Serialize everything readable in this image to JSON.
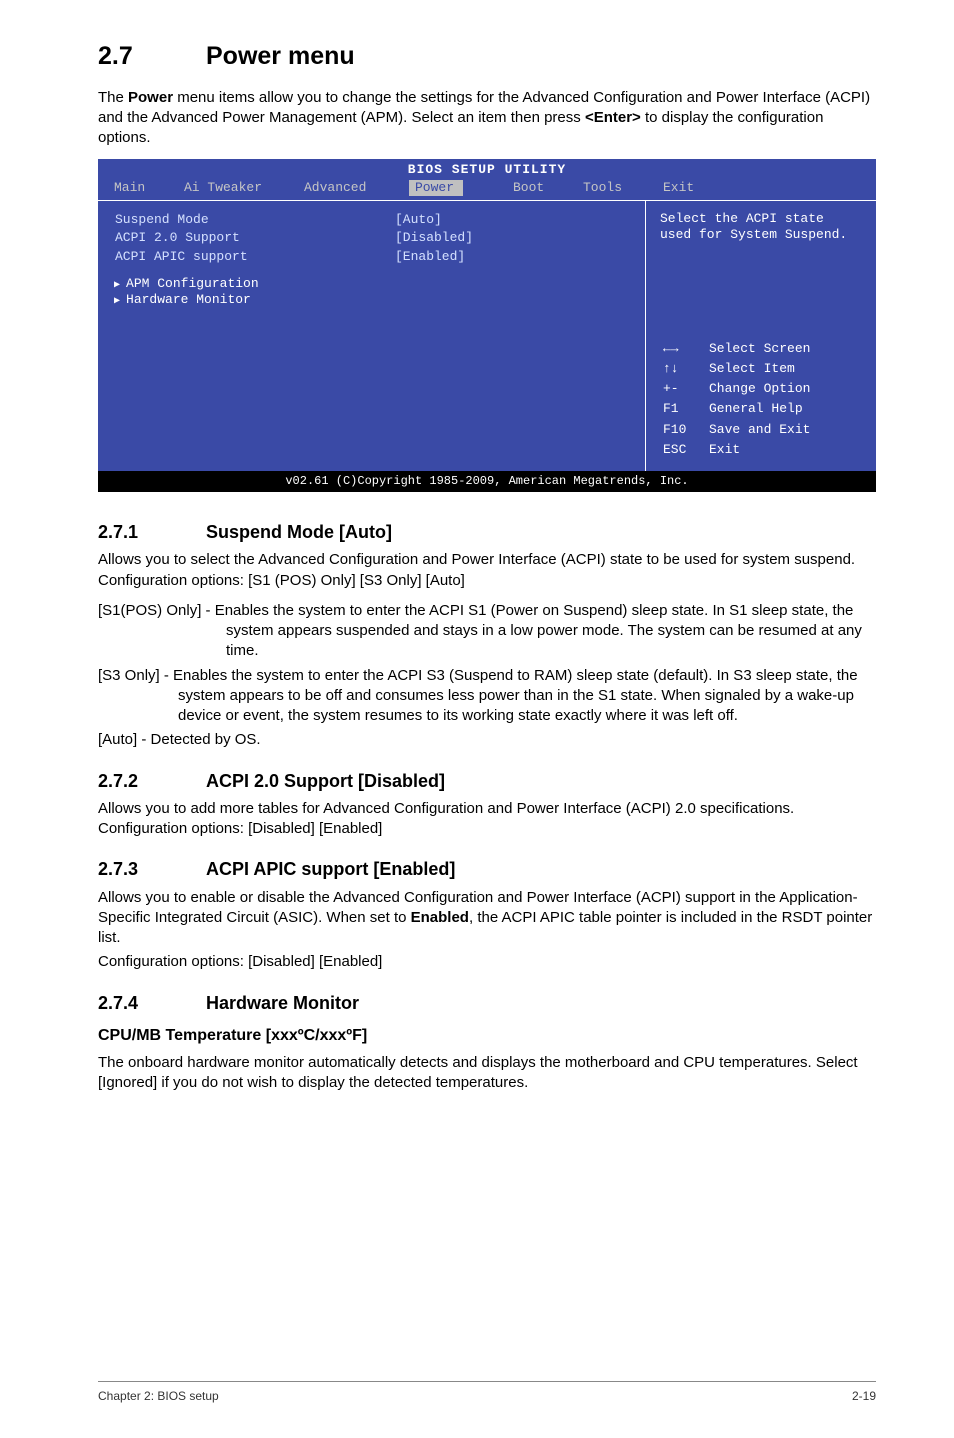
{
  "section": {
    "number": "2.7",
    "title": "Power menu"
  },
  "intro_html": "The <b>Power</b> menu items allow you to change the settings for the Advanced Configuration and Power Interface (ACPI) and the Advanced Power Management (APM). Select an item then press <b>&lt;Enter&gt;</b> to display the configuration options.",
  "bios": {
    "title": "BIOS SETUP UTILITY",
    "tabs": [
      "Main",
      "Ai Tweaker",
      "Advanced",
      "Power",
      "Boot",
      "Tools",
      "Exit"
    ],
    "active_tab": "Power",
    "left_rows": [
      {
        "label": "Suspend Mode",
        "value": "[Auto]"
      },
      {
        "label": "ACPI 2.0 Support",
        "value": "[Disabled]"
      },
      {
        "label": "ACPI APIC support",
        "value": "[Enabled]"
      }
    ],
    "left_subs": [
      "APM Configuration",
      "Hardware Monitor"
    ],
    "right_top": "Select the ACPI state used for System Suspend.",
    "right_nav": [
      {
        "k": "←→",
        "v": "Select Screen"
      },
      {
        "k": "↑↓",
        "v": "Select Item"
      },
      {
        "k": "+-",
        "v": "Change Option"
      },
      {
        "k": "F1",
        "v": "General Help"
      },
      {
        "k": "F10",
        "v": "Save and Exit"
      },
      {
        "k": "ESC",
        "v": "Exit"
      }
    ],
    "footer": "v02.61 (C)Copyright 1985-2009, American Megatrends, Inc.",
    "colors": {
      "bg": "#3a4aa6",
      "tab_active_bg": "#c0c0c0",
      "tab_active_fg": "#3a4aa6",
      "text": "#ffffff",
      "dim_text": "#c5c5c5",
      "value_text": "#d4e0ff",
      "footer_bg": "#000000"
    }
  },
  "sub1": {
    "number": "2.7.1",
    "title": "Suspend Mode [Auto]",
    "p1": "Allows you to select the Advanced Configuration and Power Interface (ACPI) state to be used for system suspend. Configuration options: [S1 (POS) Only] [S3 Only] [Auto]",
    "h1": "[S1(POS) Only] - Enables the system to enter the ACPI S1 (Power on Suspend) sleep state. In S1 sleep state, the system appears suspended and stays in a low power mode. The system can be resumed at any time.",
    "h2": "[S3 Only] - Enables the system to enter the ACPI S3 (Suspend to RAM) sleep state (default). In S3 sleep state, the system appears to be off and consumes less power than in the S1 state. When signaled by a wake-up device or event, the system resumes to its working state exactly where it was left off.",
    "h3": "[Auto] - Detected by OS."
  },
  "sub2": {
    "number": "2.7.2",
    "title": "ACPI 2.0 Support [Disabled]",
    "p": "Allows you to add more tables for Advanced Configuration and Power Interface (ACPI) 2.0 specifications. Configuration options: [Disabled] [Enabled]"
  },
  "sub3": {
    "number": "2.7.3",
    "title": "ACPI APIC support [Enabled]",
    "p_html": "Allows you to enable or disable the Advanced Configuration and Power Interface (ACPI) support in the Application-Specific Integrated Circuit (ASIC). When set to <b>Enabled</b>, the ACPI APIC table pointer is included in the RSDT pointer list.",
    "p2": "Configuration options: [Disabled] [Enabled]"
  },
  "sub4": {
    "number": "2.7.4",
    "title": "Hardware Monitor",
    "h": "CPU/MB Temperature [xxxºC/xxxºF]",
    "p": "The onboard hardware monitor automatically detects and displays the motherboard and CPU temperatures. Select [Ignored] if you do not wish to display the detected temperatures."
  },
  "footer": {
    "left": "Chapter 2: BIOS setup",
    "right": "2-19"
  }
}
